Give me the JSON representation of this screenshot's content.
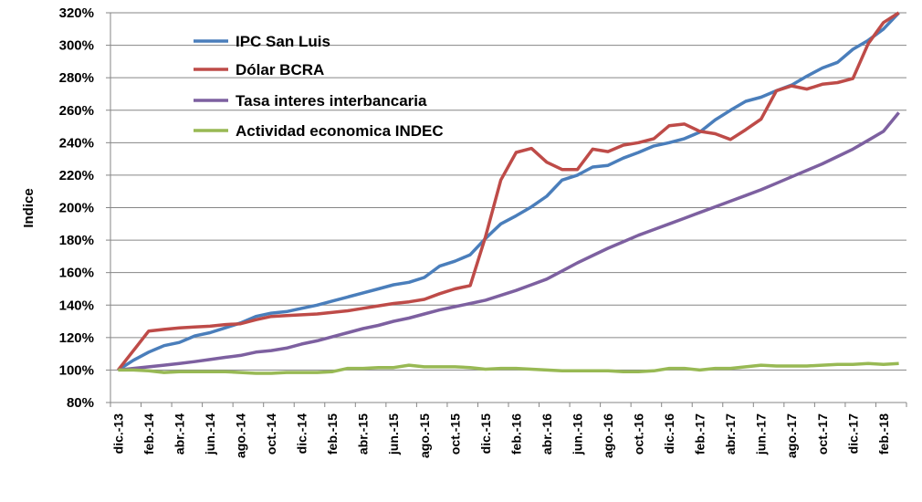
{
  "chart_data": {
    "type": "line",
    "title": "",
    "xlabel": "",
    "ylabel": "Indice",
    "ylim": [
      80,
      320
    ],
    "ytick_step": 20,
    "ytick_format": "percent",
    "grid": "horizontal",
    "legend_placement": "top-left",
    "x_tick_labels": [
      "dic.-13",
      "feb.-14",
      "abr.-14",
      "jun.-14",
      "ago.-14",
      "oct.-14",
      "dic.-14",
      "feb.-15",
      "abr.-15",
      "jun.-15",
      "ago.-15",
      "oct.-15",
      "dic.-15",
      "feb.-16",
      "abr.-16",
      "jun.-16",
      "ago.-16",
      "oct.-16",
      "dic.-16",
      "feb.-17",
      "abr.-17",
      "jun.-17",
      "ago.-17",
      "oct.-17",
      "dic.-17",
      "feb.-18"
    ],
    "series": [
      {
        "name": "IPC San Luis",
        "color": "#4a7ebb",
        "values": [
          100,
          106,
          111,
          115,
          117,
          121,
          123,
          126,
          129,
          133,
          135,
          136,
          138,
          140,
          142.5,
          145,
          147.5,
          150,
          152.5,
          154,
          157,
          164,
          167,
          171,
          181,
          190,
          195,
          200.5,
          207,
          217,
          220,
          225,
          226,
          230.5,
          234,
          238,
          240,
          242.5,
          246.5,
          254,
          260,
          265.5,
          268,
          272,
          275.5,
          281,
          286,
          289.5,
          297.5,
          303,
          310,
          320
        ]
      },
      {
        "name": "Dólar BCRA",
        "color": "#be4b48",
        "values": [
          100,
          112,
          124,
          125,
          126,
          126.5,
          127,
          128,
          128.5,
          131,
          133,
          133.5,
          134,
          134.5,
          135.5,
          136.5,
          138,
          139.5,
          141,
          142,
          143.5,
          147,
          150,
          152,
          182,
          217,
          234,
          236.5,
          228,
          223.5,
          223.5,
          236,
          234.5,
          238.5,
          240,
          242.5,
          250.5,
          251.5,
          247,
          245.5,
          242,
          248,
          254.5,
          272,
          275,
          273,
          276,
          277,
          279.5,
          301,
          314,
          320
        ]
      },
      {
        "name": "Tasa interes interbancaria",
        "color": "#7d60a0",
        "values": [
          100,
          101,
          102,
          103,
          104,
          105.2,
          106.5,
          107.8,
          109,
          111,
          112,
          113.5,
          116,
          118,
          120.5,
          123,
          125.5,
          127.5,
          130,
          132,
          134.5,
          137,
          139,
          141,
          143,
          146,
          149,
          152.5,
          156,
          161,
          166,
          170.5,
          175,
          179,
          183,
          186.5,
          190,
          193.5,
          197,
          200.5,
          204,
          207.5,
          211,
          215,
          219,
          223,
          227,
          231.5,
          236,
          241.5,
          247,
          258.5
        ]
      },
      {
        "name": "Actividad economica INDEC",
        "color": "#98b954",
        "values": [
          100,
          100,
          99.5,
          98.5,
          99,
          99,
          99,
          99,
          98.5,
          98,
          98,
          98.5,
          98.5,
          98.5,
          99,
          101,
          101,
          101.5,
          101.5,
          103,
          102,
          102,
          102,
          101.5,
          100.5,
          101,
          101,
          100.5,
          100,
          99.5,
          99.5,
          99.5,
          99.5,
          99,
          99,
          99.5,
          101,
          101,
          100,
          101,
          101,
          102,
          103,
          102.5,
          102.5,
          102.5,
          103,
          103.5,
          103.5,
          104,
          103.5,
          104
        ]
      }
    ]
  }
}
